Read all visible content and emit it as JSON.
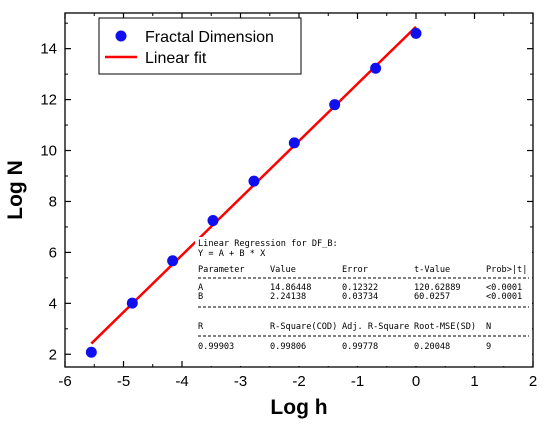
{
  "chart_data": {
    "type": "scatter",
    "xlabel": "Log h",
    "ylabel": "Log N",
    "xlim": [
      -6,
      2
    ],
    "ylim": [
      1.5,
      15.4
    ],
    "x_ticks": [
      "-6",
      "-5",
      "-4",
      "-3",
      "-2",
      "-1",
      "0",
      "1",
      "2"
    ],
    "y_ticks": [
      "2",
      "4",
      "6",
      "8",
      "10",
      "12",
      "14"
    ],
    "legend_position": "top-left",
    "series": [
      {
        "name": "Fractal Dimension",
        "kind": "scatter",
        "color": "#1010ee",
        "x": [
          -5.55,
          -4.85,
          -4.16,
          -3.47,
          -2.77,
          -2.08,
          -1.39,
          -0.69,
          0.0
        ],
        "y": [
          2.08,
          4.01,
          5.67,
          7.25,
          8.8,
          10.3,
          11.8,
          13.23,
          14.6
        ]
      },
      {
        "name": "Linear fit",
        "kind": "line",
        "color": "#ff0000",
        "x": [
          -5.55,
          0.0
        ],
        "y": [
          2.42,
          14.86
        ]
      }
    ]
  },
  "regression_box": {
    "title": "Linear Regression for DF_B:",
    "equation": "Y = A + B * X",
    "header": [
      "Parameter",
      "Value",
      "Error",
      "t-Value",
      "Prob>|t|"
    ],
    "rows": [
      [
        "A",
        "14.86448",
        "0.12322",
        "120.62889",
        "<0.0001"
      ],
      [
        "B",
        "2.24138",
        "0.03734",
        "60.0257",
        "<0.0001"
      ]
    ],
    "stats_header": [
      "R",
      "R-Square(COD)",
      "Adj. R-Square",
      "Root-MSE(SD)",
      "N"
    ],
    "stats_values": [
      "0.99903",
      "0.99806",
      "0.99778",
      "0.20048",
      "9"
    ]
  }
}
